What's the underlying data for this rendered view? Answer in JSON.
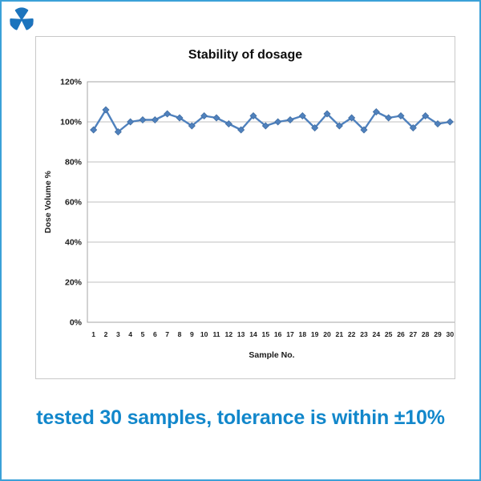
{
  "page": {
    "caption": "tested 30 samples, tolerance is within ±10%",
    "caption_color": "#1287cb",
    "frame_color": "#3ba1d8"
  },
  "logo": {
    "name": "trefoil-brand-logo",
    "petal_color": "#1c74bd",
    "accent_color": "#6059a6"
  },
  "chart_data": {
    "type": "line",
    "title": "Stability of dosage",
    "xlabel": "Sample No.",
    "ylabel": "Dose Volume %",
    "x": [
      1,
      2,
      3,
      4,
      5,
      6,
      7,
      8,
      9,
      10,
      11,
      12,
      13,
      14,
      15,
      16,
      17,
      18,
      19,
      20,
      21,
      22,
      23,
      24,
      25,
      26,
      27,
      28,
      29,
      30
    ],
    "series": [
      {
        "name": "Dose Volume %",
        "color": "#4f81bd",
        "marker": "diamond",
        "values": [
          96,
          106,
          95,
          100,
          101,
          101,
          104,
          102,
          98,
          103,
          102,
          99,
          96,
          103,
          98,
          100,
          101,
          103,
          97,
          104,
          98,
          102,
          96,
          105,
          102,
          103,
          97,
          103,
          99,
          100
        ]
      }
    ],
    "ylim": [
      0,
      120
    ],
    "ytick_step": 20,
    "ytick_suffix": "%",
    "grid": true,
    "legend_position": "none",
    "grid_color": "#bfbfbf",
    "plot_border_color": "#a6a6a6",
    "tick_text_color": "#1a1a1a"
  }
}
